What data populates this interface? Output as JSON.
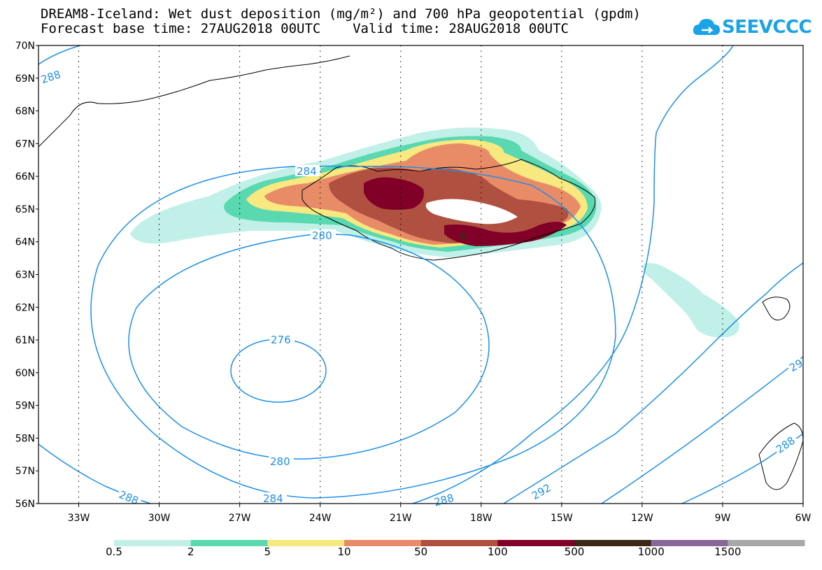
{
  "header": {
    "title_line1": "DREAM8-Iceland: Wet dust deposition (mg/m²) and 700 hPa geopotential (gpdm)",
    "title_line2": "Forecast base time: 27AUG2018 00UTC    Valid time: 28AUG2018 00UTC"
  },
  "logo": {
    "text": "SEEVCCC",
    "icon": "cloud-icon",
    "color": "#1aa3e6"
  },
  "axes": {
    "lat_labels": [
      "70N",
      "69N",
      "68N",
      "67N",
      "66N",
      "65N",
      "64N",
      "63N",
      "62N",
      "61N",
      "60N",
      "59N",
      "58N",
      "57N",
      "56N"
    ],
    "lon_labels": [
      "33W",
      "30W",
      "27W",
      "24W",
      "21W",
      "18W",
      "15W",
      "12W",
      "9W",
      "6W"
    ],
    "lat_range": [
      56,
      70
    ],
    "lon_range": [
      -34.5,
      -6
    ]
  },
  "contours": {
    "color": "#1e90e8",
    "labels": [
      "288",
      "284",
      "280",
      "276",
      "280",
      "284",
      "288",
      "288",
      "292",
      "29",
      "288"
    ]
  },
  "legend": {
    "thresholds": [
      "0.5",
      "2",
      "5",
      "10",
      "50",
      "100",
      "500",
      "1000",
      "1500"
    ],
    "colors": [
      "#c0f0e8",
      "#5ad8b0",
      "#f8e880",
      "#e88c68",
      "#b05040",
      "#800028",
      "#3c2818",
      "#886898",
      "#a8a8a8"
    ]
  }
}
